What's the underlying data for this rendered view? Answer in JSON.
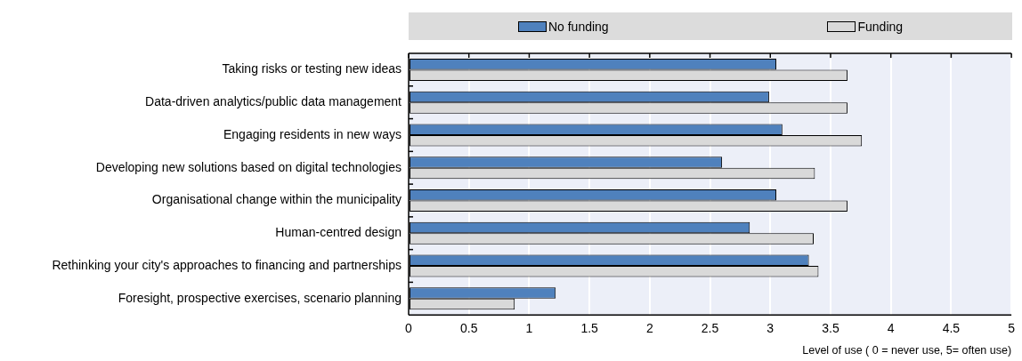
{
  "chart_data": {
    "type": "bar",
    "orientation": "horizontal",
    "xlabel": "Level of use ( 0 = never use, 5= often use)",
    "categories": [
      "Taking risks or testing new ideas",
      "Data-driven analytics/public data management",
      "Engaging residents in new ways",
      "Developing new solutions based on digital technologies",
      "Organisational change within the municipality",
      "Human-centred design",
      "Rethinking your city's approaches to financing and partnerships",
      "Foresight, prospective exercises, scenario planning"
    ],
    "series": [
      {
        "name": "No funding",
        "color": "#4f81bd",
        "values": [
          3.05,
          2.99,
          3.1,
          2.6,
          3.05,
          2.83,
          3.32,
          1.22
        ]
      },
      {
        "name": "Funding",
        "color": "#d9d9d9",
        "values": [
          3.64,
          3.64,
          3.76,
          3.37,
          3.64,
          3.36,
          3.4,
          0.88
        ]
      }
    ],
    "xlim": [
      0,
      5
    ],
    "xticks": [
      0,
      0.5,
      1,
      1.5,
      2,
      2.5,
      3,
      3.5,
      4,
      4.5,
      5
    ],
    "grid": "x",
    "legend": "top"
  }
}
